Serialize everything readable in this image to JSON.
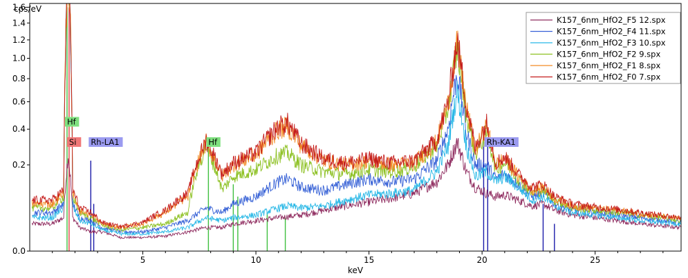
{
  "chart_data": {
    "type": "line",
    "title": "",
    "xlabel": "keV",
    "ylabel": "cps/eV",
    "xlim": [
      0.0,
      28.8
    ],
    "ylim": [
      0.0,
      1.65
    ],
    "y_scale": "sqrt",
    "x_ticks": [
      5,
      10,
      15,
      20,
      25
    ],
    "x_tick_labels": [
      "5",
      "10",
      "15",
      "20",
      "25"
    ],
    "y_ticks": [
      0.0,
      0.2,
      0.4,
      0.6,
      0.8,
      1.0,
      1.2,
      1.4,
      1.6
    ],
    "y_tick_labels": [
      "0.0",
      "0.2",
      "0.4",
      "0.6",
      "0.8",
      "1.0",
      "1.2",
      "1.4",
      "1.6"
    ],
    "grid": false,
    "legend_position": "top-right",
    "series": [
      {
        "name": "K157_6nm_HfO2_F5 12.spx",
        "color": "#8e2a5e",
        "x": [
          0.1,
          0.5,
          1.0,
          1.5,
          1.7,
          1.9,
          2.2,
          2.7,
          3.2,
          4.0,
          5.0,
          6.0,
          7.0,
          7.8,
          8.5,
          9.0,
          10.0,
          11.0,
          11.4,
          12.0,
          13.0,
          14.0,
          15.0,
          16.0,
          17.0,
          18.0,
          18.5,
          18.9,
          19.3,
          19.7,
          20.2,
          20.6,
          21.0,
          21.6,
          22.2,
          22.7,
          23.2,
          24.0,
          25.0,
          26.0,
          27.0,
          28.0,
          28.8
        ],
        "values": [
          0.02,
          0.02,
          0.02,
          0.03,
          0.25,
          0.03,
          0.015,
          0.01,
          0.01,
          0.005,
          0.005,
          0.006,
          0.01,
          0.015,
          0.015,
          0.02,
          0.025,
          0.03,
          0.032,
          0.035,
          0.045,
          0.055,
          0.065,
          0.075,
          0.09,
          0.13,
          0.2,
          0.32,
          0.17,
          0.11,
          0.09,
          0.08,
          0.085,
          0.07,
          0.055,
          0.06,
          0.045,
          0.035,
          0.03,
          0.025,
          0.02,
          0.017,
          0.015
        ]
      },
      {
        "name": "K157_6nm_HfO2_F4 11.spx",
        "color": "#3560d6",
        "x": [
          0.1,
          0.5,
          1.0,
          1.5,
          1.7,
          1.9,
          2.2,
          2.7,
          3.2,
          4.0,
          5.0,
          6.0,
          7.0,
          7.8,
          8.5,
          9.0,
          10.0,
          11.0,
          11.4,
          12.0,
          13.0,
          14.0,
          15.0,
          16.0,
          17.0,
          18.0,
          18.5,
          18.9,
          19.3,
          19.7,
          20.2,
          20.6,
          21.0,
          21.6,
          22.2,
          22.7,
          23.2,
          24.0,
          25.0,
          26.0,
          27.0,
          28.0,
          28.8
        ],
        "values": [
          0.04,
          0.04,
          0.04,
          0.06,
          2.5,
          0.06,
          0.03,
          0.025,
          0.015,
          0.01,
          0.01,
          0.015,
          0.025,
          0.05,
          0.04,
          0.06,
          0.08,
          0.13,
          0.14,
          0.11,
          0.1,
          0.12,
          0.14,
          0.13,
          0.14,
          0.22,
          0.4,
          0.85,
          0.38,
          0.2,
          0.2,
          0.14,
          0.16,
          0.12,
          0.08,
          0.09,
          0.06,
          0.045,
          0.04,
          0.035,
          0.03,
          0.025,
          0.022
        ]
      },
      {
        "name": "K157_6nm_HfO2_F3 10.spx",
        "color": "#26b7e6",
        "x": [
          0.1,
          0.5,
          1.0,
          1.5,
          1.7,
          1.9,
          2.2,
          2.7,
          3.2,
          4.0,
          5.0,
          6.0,
          7.0,
          7.8,
          8.5,
          9.0,
          10.0,
          11.0,
          11.4,
          12.0,
          13.0,
          14.0,
          15.0,
          16.0,
          17.0,
          18.0,
          18.5,
          18.9,
          19.3,
          19.7,
          20.2,
          20.6,
          21.0,
          21.6,
          22.2,
          22.7,
          23.2,
          24.0,
          25.0,
          26.0,
          27.0,
          28.0,
          28.8
        ],
        "values": [
          0.03,
          0.03,
          0.03,
          0.05,
          2.5,
          0.05,
          0.025,
          0.02,
          0.012,
          0.008,
          0.008,
          0.01,
          0.015,
          0.03,
          0.025,
          0.03,
          0.035,
          0.05,
          0.055,
          0.05,
          0.055,
          0.07,
          0.085,
          0.09,
          0.1,
          0.17,
          0.3,
          0.68,
          0.3,
          0.15,
          0.17,
          0.13,
          0.15,
          0.11,
          0.07,
          0.08,
          0.055,
          0.04,
          0.035,
          0.03,
          0.025,
          0.022,
          0.02
        ]
      },
      {
        "name": "K157_6nm_HfO2_F2 9.spx",
        "color": "#8cc021",
        "x": [
          0.1,
          0.5,
          1.0,
          1.5,
          1.7,
          1.9,
          2.2,
          2.7,
          3.2,
          4.0,
          5.0,
          6.0,
          7.0,
          7.8,
          8.5,
          9.0,
          10.0,
          11.0,
          11.4,
          12.0,
          13.0,
          14.0,
          15.0,
          16.0,
          17.0,
          18.0,
          18.5,
          18.9,
          19.3,
          19.7,
          20.2,
          20.6,
          21.0,
          21.6,
          22.2,
          22.7,
          23.2,
          24.0,
          25.0,
          26.0,
          27.0,
          28.0,
          28.8
        ],
        "values": [
          0.05,
          0.05,
          0.05,
          0.08,
          2.5,
          0.08,
          0.04,
          0.03,
          0.018,
          0.012,
          0.015,
          0.02,
          0.04,
          0.3,
          0.1,
          0.15,
          0.18,
          0.25,
          0.26,
          0.2,
          0.17,
          0.16,
          0.18,
          0.17,
          0.19,
          0.3,
          0.55,
          1.1,
          0.5,
          0.25,
          0.38,
          0.18,
          0.21,
          0.14,
          0.09,
          0.1,
          0.07,
          0.05,
          0.045,
          0.04,
          0.035,
          0.03,
          0.025
        ]
      },
      {
        "name": "K157_6nm_HfO2_F1 8.spx",
        "color": "#f28a24",
        "x": [
          0.1,
          0.5,
          1.0,
          1.5,
          1.7,
          1.9,
          2.2,
          2.7,
          3.2,
          4.0,
          5.0,
          6.0,
          7.0,
          7.8,
          8.5,
          9.0,
          10.0,
          11.0,
          11.4,
          12.0,
          13.0,
          14.0,
          15.0,
          16.0,
          17.0,
          18.0,
          18.5,
          18.9,
          19.3,
          19.7,
          20.2,
          20.6,
          21.0,
          21.6,
          22.2,
          22.7,
          23.2,
          24.0,
          25.0,
          26.0,
          27.0,
          28.0,
          28.8
        ],
        "values": [
          0.06,
          0.06,
          0.06,
          0.09,
          2.5,
          0.09,
          0.045,
          0.035,
          0.02,
          0.015,
          0.02,
          0.04,
          0.08,
          0.32,
          0.15,
          0.2,
          0.25,
          0.4,
          0.42,
          0.3,
          0.22,
          0.2,
          0.22,
          0.2,
          0.21,
          0.32,
          0.58,
          1.15,
          0.55,
          0.27,
          0.42,
          0.2,
          0.23,
          0.15,
          0.1,
          0.11,
          0.075,
          0.055,
          0.05,
          0.045,
          0.038,
          0.032,
          0.028
        ]
      },
      {
        "name": "K157_6nm_HfO2_F0 7.spx",
        "color": "#c41b1b",
        "x": [
          0.1,
          0.5,
          1.0,
          1.5,
          1.7,
          1.9,
          2.2,
          2.7,
          3.2,
          4.0,
          5.0,
          6.0,
          7.0,
          7.8,
          8.5,
          9.0,
          10.0,
          11.0,
          11.4,
          12.0,
          13.0,
          14.0,
          15.0,
          16.0,
          17.0,
          18.0,
          18.5,
          18.9,
          19.3,
          19.7,
          20.2,
          20.6,
          21.0,
          21.6,
          22.2,
          22.7,
          23.2,
          24.0,
          25.0,
          26.0,
          27.0,
          28.0,
          28.8
        ],
        "values": [
          0.07,
          0.07,
          0.07,
          0.1,
          2.5,
          0.1,
          0.05,
          0.04,
          0.022,
          0.016,
          0.022,
          0.045,
          0.09,
          0.33,
          0.16,
          0.21,
          0.26,
          0.42,
          0.44,
          0.31,
          0.23,
          0.21,
          0.23,
          0.21,
          0.22,
          0.33,
          0.6,
          1.18,
          0.57,
          0.28,
          0.44,
          0.21,
          0.24,
          0.16,
          0.11,
          0.12,
          0.08,
          0.06,
          0.052,
          0.047,
          0.04,
          0.034,
          0.03
        ]
      }
    ],
    "annotations": [
      {
        "label": "Hf",
        "x": 1.65,
        "y": 0.45,
        "color": "#7fe07f"
      },
      {
        "label": "Si",
        "x": 1.74,
        "y": 0.32,
        "color": "#f07878"
      },
      {
        "label": "Rh-LA1",
        "x": 2.7,
        "y": 0.32,
        "color": "#9b9bf0"
      },
      {
        "label": "Hf",
        "x": 7.9,
        "y": 0.32,
        "color": "#7fe07f"
      },
      {
        "label": "Rh-KA1",
        "x": 20.2,
        "y": 0.32,
        "color": "#9b9bf0"
      }
    ],
    "markers": [
      {
        "x": 1.65,
        "y": 1.6,
        "color": "#3fbf3f"
      },
      {
        "x": 1.74,
        "y": 1.6,
        "color": "#e04040"
      },
      {
        "x": 2.7,
        "y": 0.22,
        "color": "#1a1aa8"
      },
      {
        "x": 2.83,
        "y": 0.06,
        "color": "#1a1aa8"
      },
      {
        "x": 7.9,
        "y": 0.32,
        "color": "#3fbf3f"
      },
      {
        "x": 9.0,
        "y": 0.12,
        "color": "#3fbf3f"
      },
      {
        "x": 9.2,
        "y": 0.08,
        "color": "#3fbf3f"
      },
      {
        "x": 10.5,
        "y": 0.04,
        "color": "#3fbf3f"
      },
      {
        "x": 11.3,
        "y": 0.03,
        "color": "#3fbf3f"
      },
      {
        "x": 20.07,
        "y": 0.32,
        "color": "#1a1aa8"
      },
      {
        "x": 20.25,
        "y": 0.32,
        "color": "#1a1aa8"
      },
      {
        "x": 22.7,
        "y": 0.06,
        "color": "#1a1aa8"
      },
      {
        "x": 23.2,
        "y": 0.02,
        "color": "#1a1aa8"
      }
    ]
  }
}
